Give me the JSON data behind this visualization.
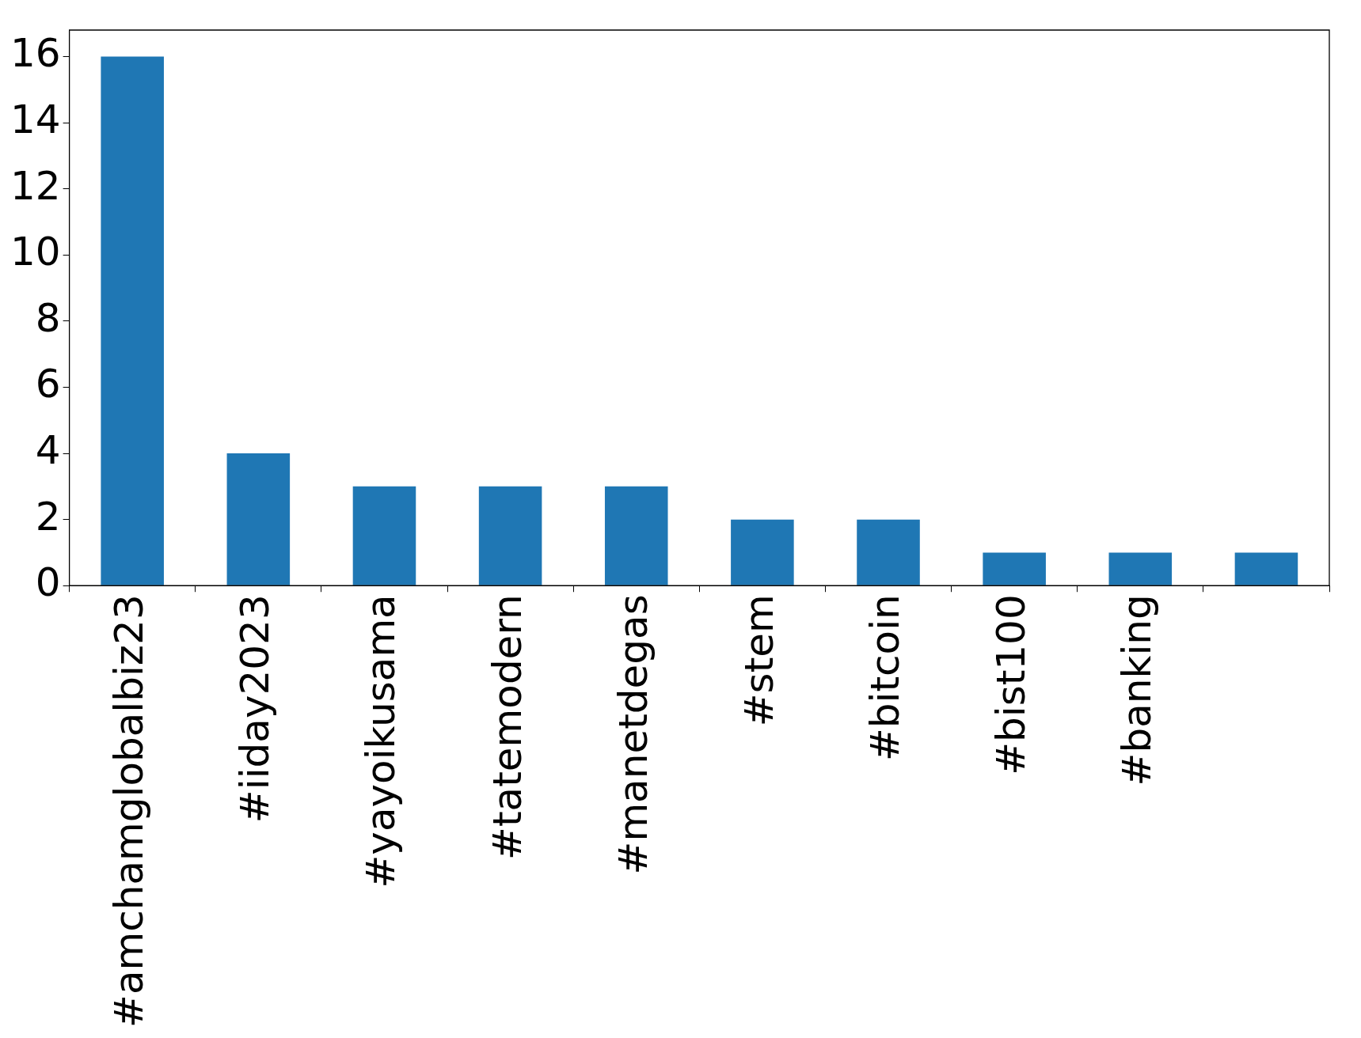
{
  "chart_data": {
    "type": "bar",
    "categories": [
      "#amchamglobalbiz23",
      "#iiday2023",
      "#yayoikusama",
      "#tatemodern",
      "#manetdegas",
      "#stem",
      "#bitcoin",
      "#bist100",
      "#banking",
      null
    ],
    "values": [
      16,
      4,
      3,
      3,
      3,
      2,
      2,
      1,
      1,
      1
    ],
    "color": "#1f77b4",
    "ylim": [
      0,
      16.8
    ],
    "yticks": [
      0,
      2,
      4,
      6,
      8,
      10,
      12,
      14,
      16
    ],
    "grid": false,
    "legend": false
  }
}
